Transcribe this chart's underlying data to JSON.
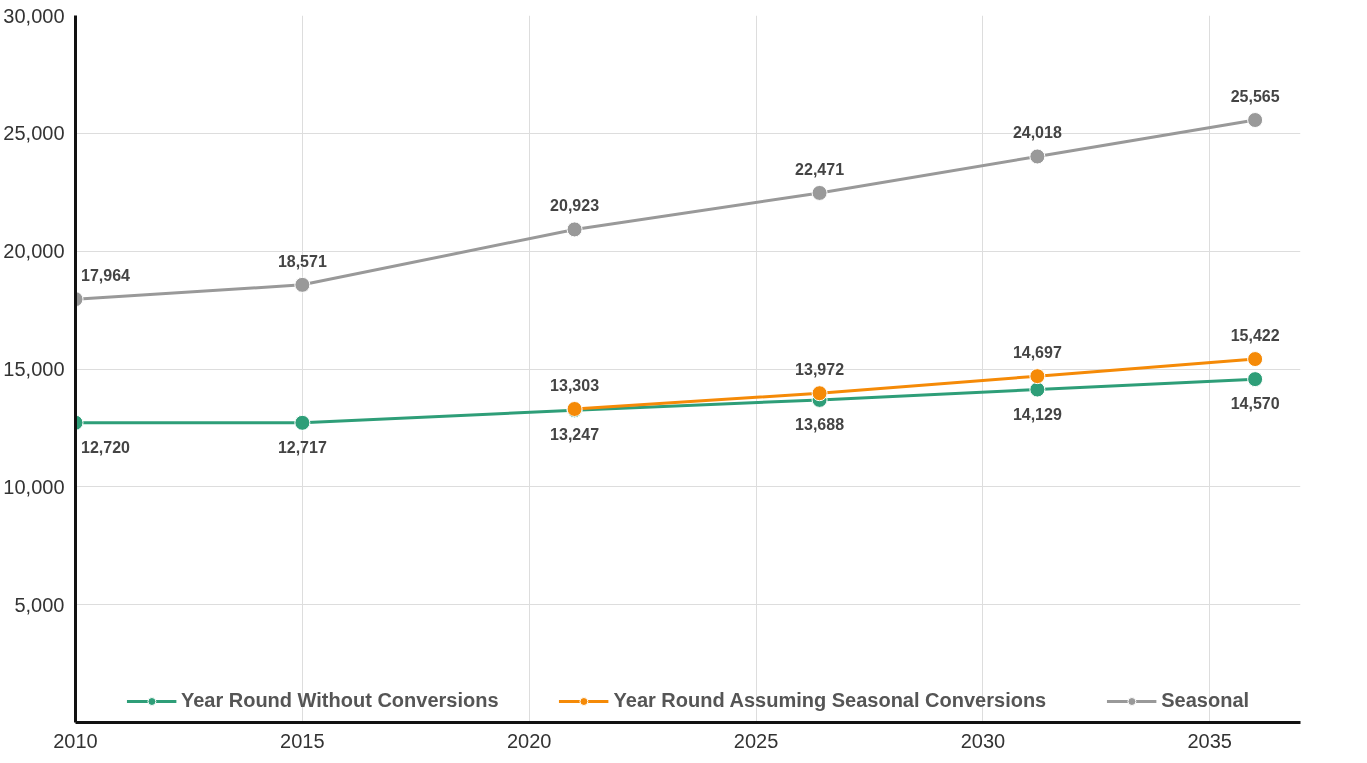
{
  "chart_data": {
    "type": "line",
    "x": [
      2010,
      2015,
      2021,
      2026.4,
      2031.2,
      2036
    ],
    "xlim": [
      2010,
      2037
    ],
    "xticks": [
      2010,
      2015,
      2020,
      2025,
      2030,
      2035
    ],
    "ylim": [
      0,
      30000
    ],
    "yticks": [
      {
        "value": 5000,
        "label": "5,000"
      },
      {
        "value": 10000,
        "label": "10,000"
      },
      {
        "value": 15000,
        "label": "15,000"
      },
      {
        "value": 20000,
        "label": "20,000"
      },
      {
        "value": 25000,
        "label": "25,000"
      },
      {
        "value": 30000,
        "label": "30,000"
      }
    ],
    "series": [
      {
        "name": "Year Round Without Conversions",
        "color": "#2e9e78",
        "values": [
          12720,
          12717,
          13247,
          13688,
          14129,
          14570
        ],
        "value_labels": [
          "12,720",
          "12,717",
          "13,247",
          "13,688",
          "14,129",
          "14,570"
        ]
      },
      {
        "name": "Year Round Assuming Seasonal Conversions",
        "color": "#f58a07",
        "values": [
          null,
          null,
          13303,
          13972,
          14697,
          15422
        ],
        "value_labels": [
          null,
          null,
          "13,303",
          "13,972",
          "14,697",
          "15,422"
        ]
      },
      {
        "name": "Seasonal",
        "color": "#999999",
        "values": [
          17964,
          18571,
          20923,
          22471,
          24018,
          25565
        ],
        "value_labels": [
          "17,964",
          "18,571",
          "20,923",
          "22,471",
          "24,018",
          "25,565"
        ]
      }
    ],
    "grid": true,
    "legend": "bottom",
    "marker": "circle",
    "line_style": "solid"
  }
}
